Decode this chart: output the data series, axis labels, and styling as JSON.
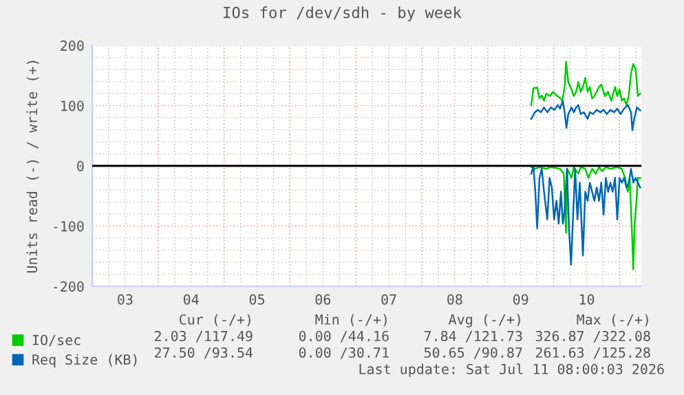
{
  "chart_data": {
    "type": "line",
    "title": "IOs for /dev/sdh - by week",
    "ylabel": "Units read (-) / write (+)",
    "xlim": [
      3,
      11.33
    ],
    "ylim": [
      -200,
      200
    ],
    "xticks": [
      {
        "value": 3.5,
        "label": "03"
      },
      {
        "value": 4.5,
        "label": "04"
      },
      {
        "value": 5.5,
        "label": "05"
      },
      {
        "value": 6.5,
        "label": "06"
      },
      {
        "value": 7.5,
        "label": "07"
      },
      {
        "value": 8.5,
        "label": "08"
      },
      {
        "value": 9.5,
        "label": "09"
      },
      {
        "value": 10.5,
        "label": "10"
      }
    ],
    "yticks": [
      -200,
      -100,
      0,
      100,
      200
    ],
    "grid": true,
    "legend": "bottom left",
    "ref_lines": [
      {
        "axis": "y",
        "value": 0,
        "color": "#000000"
      }
    ],
    "series": [
      {
        "name": "IO/sec",
        "color": "#00cc00",
        "x": [
          9.66,
          9.694,
          9.75,
          9.785,
          9.819,
          9.854,
          9.889,
          9.944,
          9.993,
          10.042,
          10.083,
          10.132,
          10.167,
          10.188,
          10.222,
          10.271,
          10.306,
          10.34,
          10.375,
          10.41,
          10.444,
          10.479,
          10.514,
          10.549,
          10.583,
          10.618,
          10.653,
          10.688,
          10.722,
          10.778,
          10.826,
          10.875,
          10.931,
          10.965,
          11.0,
          11.035,
          11.069,
          11.104,
          11.139,
          11.174,
          11.208,
          11.243,
          11.278,
          11.313
        ],
        "values": [
          101,
          129,
          130,
          112,
          117,
          108,
          120,
          116,
          123,
          117,
          114,
          108,
          131,
          173,
          139,
          127,
          116,
          123,
          139,
          123,
          131,
          146,
          123,
          131,
          112,
          116,
          123,
          131,
          135,
          116,
          123,
          108,
          131,
          116,
          127,
          108,
          112,
          101,
          116,
          154,
          169,
          161,
          116,
          120
        ]
      },
      {
        "name": "Req Size (KB)",
        "color": "#0066b3",
        "x": [
          9.66,
          9.715,
          9.764,
          9.806,
          9.854,
          9.903,
          9.958,
          10.014,
          10.063,
          10.097,
          10.139,
          10.167,
          10.194,
          10.222,
          10.271,
          10.306,
          10.34,
          10.375,
          10.41,
          10.458,
          10.514,
          10.549,
          10.597,
          10.653,
          10.708,
          10.757,
          10.806,
          10.861,
          10.917,
          10.965,
          11.014,
          11.069,
          11.125,
          11.174,
          11.194,
          11.222,
          11.264,
          11.313
        ],
        "values": [
          78,
          89,
          93,
          89,
          97,
          89,
          97,
          93,
          101,
          95,
          108,
          89,
          63,
          86,
          97,
          89,
          97,
          101,
          86,
          89,
          78,
          89,
          86,
          93,
          89,
          93,
          86,
          93,
          89,
          95,
          86,
          95,
          101,
          89,
          59,
          78,
          97,
          92
        ]
      },
      {
        "color": "#00cc00",
        "x": [
          9.66,
          9.715,
          9.785,
          9.889,
          9.958,
          10.097,
          10.153,
          10.188,
          10.208,
          10.271,
          10.306,
          10.375,
          10.41,
          10.479,
          10.528,
          10.583,
          10.639,
          10.688,
          10.736,
          10.792,
          10.861,
          10.965,
          11.035,
          11.083,
          11.125,
          11.153,
          11.194,
          11.208,
          11.229,
          11.257,
          11.278,
          11.313
        ],
        "values": [
          -2,
          -5,
          -2,
          -5,
          -2,
          -5,
          -13,
          -111,
          -5,
          -20,
          -2,
          -13,
          -2,
          -5,
          -20,
          -5,
          -13,
          -2,
          -9,
          -2,
          -5,
          -2,
          -5,
          -20,
          -43,
          -20,
          -127,
          -172,
          -96,
          -58,
          -20,
          -20
        ]
      },
      {
        "color": "#0066b3",
        "x": [
          9.66,
          9.694,
          9.722,
          9.75,
          9.785,
          9.819,
          9.854,
          9.903,
          9.938,
          9.972,
          10.007,
          10.042,
          10.076,
          10.111,
          10.139,
          10.167,
          10.201,
          10.236,
          10.264,
          10.292,
          10.326,
          10.361,
          10.396,
          10.444,
          10.479,
          10.514,
          10.549,
          10.583,
          10.618,
          10.653,
          10.688,
          10.722,
          10.757,
          10.792,
          10.826,
          10.861,
          10.896,
          10.931,
          10.965,
          11.0,
          11.035,
          11.069,
          11.104,
          11.139,
          11.174,
          11.208,
          11.243,
          11.278,
          11.313
        ],
        "values": [
          -13,
          -2,
          -43,
          -104,
          -20,
          -5,
          -43,
          -89,
          -20,
          -36,
          -89,
          -58,
          -96,
          -43,
          -96,
          -74,
          -5,
          -111,
          -164,
          -89,
          -5,
          -89,
          -28,
          -149,
          -43,
          -58,
          -28,
          -43,
          -58,
          -36,
          -58,
          -28,
          -81,
          -20,
          -43,
          -28,
          -43,
          -20,
          -89,
          -20,
          -28,
          -20,
          -36,
          -28,
          -5,
          -28,
          -20,
          -28,
          -36
        ]
      }
    ],
    "annotations": [
      "Cur (-/+)",
      "Min (-/+)",
      "Avg (-/+)",
      "Max (-/+)",
      "2.03 /117.49",
      "0.00 /44.16",
      "7.84 /121.73",
      "326.87 /322.08",
      "27.50 /93.54",
      "0.00 /30.71",
      "50.65 /90.87",
      "261.63 /125.28",
      "Last update: Sat Jul 11 08:00:03 2026"
    ]
  }
}
